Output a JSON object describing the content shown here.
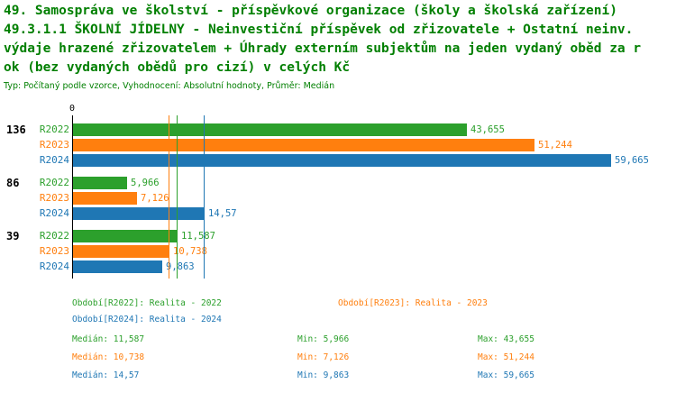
{
  "title_lines": [
    "49. Samospráva ve školství - příspěvkové organizace (školy a školská zařízení)",
    "49.3.1.1 ŠKOLNÍ JÍDELNY - Neinvestiční příspěvek od zřizovatele + Ostatní neinv.",
    "výdaje hrazené zřizovatelem + Úhrady externím subjektům na jeden vydaný oběd za r",
    "ok (bez vydaných obědů pro cizí) v celých Kč"
  ],
  "subtitle": "Typ: Počítaný podle vzorce, Vyhodnocení: Absolutní hodnoty, Průměr: Medián",
  "colors": {
    "green": "#2ca02c",
    "orange": "#ff7f0e",
    "blue": "#1f77b4",
    "title": "#007f00",
    "axis": "#000000"
  },
  "chart_data": {
    "type": "bar",
    "orientation": "horizontal",
    "xlim": [
      0,
      61000
    ],
    "zero_label": "0",
    "categories": [
      "136",
      "86",
      "39"
    ],
    "series_names": [
      "R2022",
      "R2023",
      "R2024"
    ],
    "groups": [
      {
        "label": "136",
        "bars": [
          {
            "series": "R2022",
            "color": "green",
            "value": 43655,
            "value_label": "43,655"
          },
          {
            "series": "R2023",
            "color": "orange",
            "value": 51244,
            "value_label": "51,244"
          },
          {
            "series": "R2024",
            "color": "blue",
            "value": 59665,
            "value_label": "59,665"
          }
        ]
      },
      {
        "label": "86",
        "bars": [
          {
            "series": "R2022",
            "color": "green",
            "value": 5966,
            "value_label": "5,966"
          },
          {
            "series": "R2023",
            "color": "orange",
            "value": 7126,
            "value_label": "7,126"
          },
          {
            "series": "R2024",
            "color": "blue",
            "value": 14570,
            "value_label": "14,57"
          }
        ]
      },
      {
        "label": "39",
        "bars": [
          {
            "series": "R2022",
            "color": "green",
            "value": 11587,
            "value_label": "11,587"
          },
          {
            "series": "R2023",
            "color": "orange",
            "value": 10738,
            "value_label": "10,738"
          },
          {
            "series": "R2024",
            "color": "blue",
            "value": 9863,
            "value_label": "9,863"
          }
        ]
      }
    ],
    "median_lines": [
      {
        "color": "green",
        "value": 11587
      },
      {
        "color": "orange",
        "value": 10738
      },
      {
        "color": "blue",
        "value": 14570
      }
    ]
  },
  "legend": {
    "r2022": "Období[R2022]: Realita - 2022",
    "r2023": "Období[R2023]: Realita - 2023",
    "r2024": "Období[R2024]: Realita - 2024"
  },
  "stats": [
    {
      "color": "green",
      "median": "Medián: 11,587",
      "min": "Min: 5,966",
      "max": "Max: 43,655"
    },
    {
      "color": "orange",
      "median": "Medián: 10,738",
      "min": "Min: 7,126",
      "max": "Max: 51,244"
    },
    {
      "color": "blue",
      "median": "Medián: 14,57",
      "min": "Min: 9,863",
      "max": "Max: 59,665"
    }
  ]
}
